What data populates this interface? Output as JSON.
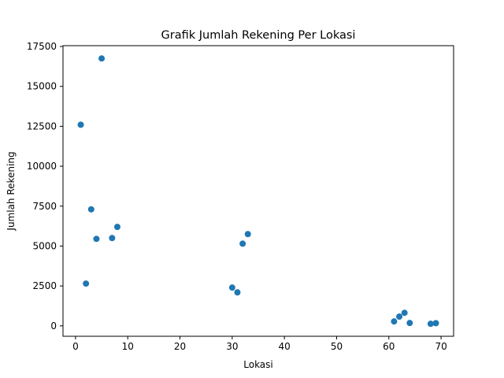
{
  "chart_data": {
    "type": "scatter",
    "title": "Grafik Jumlah Rekening Per Lokasi",
    "xlabel": "Lokasi",
    "ylabel": "Jumlah Rekening",
    "xlim": [
      -2.4,
      72.4
    ],
    "ylim": [
      -650,
      17550
    ],
    "xticks": [
      0,
      10,
      20,
      30,
      40,
      50,
      60,
      70
    ],
    "yticks": [
      0,
      2500,
      5000,
      7500,
      10000,
      12500,
      15000,
      17500
    ],
    "xtick_labels": [
      "0",
      "10",
      "20",
      "30",
      "40",
      "50",
      "60",
      "70"
    ],
    "ytick_labels": [
      "0",
      "2500",
      "5000",
      "7500",
      "10000",
      "12500",
      "15000",
      "17500"
    ],
    "grid": false,
    "marker_color": "#1f77b4",
    "points": [
      {
        "x": 1,
        "y": 12600
      },
      {
        "x": 2,
        "y": 2650
      },
      {
        "x": 3,
        "y": 7300
      },
      {
        "x": 4,
        "y": 5450
      },
      {
        "x": 5,
        "y": 16750
      },
      {
        "x": 7,
        "y": 5500
      },
      {
        "x": 8,
        "y": 6200
      },
      {
        "x": 30,
        "y": 2400
      },
      {
        "x": 31,
        "y": 2100
      },
      {
        "x": 32,
        "y": 5150
      },
      {
        "x": 33,
        "y": 5750
      },
      {
        "x": 61,
        "y": 280
      },
      {
        "x": 62,
        "y": 580
      },
      {
        "x": 63,
        "y": 820
      },
      {
        "x": 64,
        "y": 180
      },
      {
        "x": 68,
        "y": 130
      },
      {
        "x": 69,
        "y": 170
      }
    ]
  }
}
